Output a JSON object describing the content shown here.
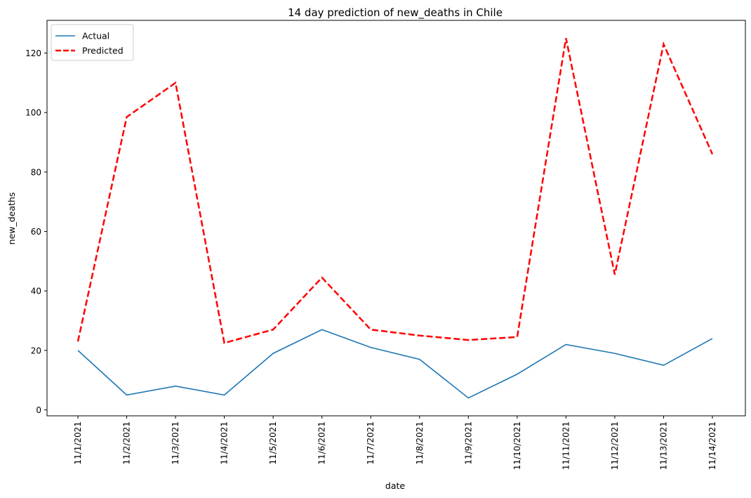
{
  "chart_data": {
    "type": "line",
    "title": "14 day prediction of new_deaths in Chile",
    "xlabel": "date",
    "ylabel": "new_deaths",
    "categories": [
      "11/1/2021",
      "11/2/2021",
      "11/3/2021",
      "11/4/2021",
      "11/5/2021",
      "11/6/2021",
      "11/7/2021",
      "11/8/2021",
      "11/9/2021",
      "11/10/2021",
      "11/11/2021",
      "11/12/2021",
      "11/13/2021",
      "11/14/2021"
    ],
    "ylim": [
      -2,
      131
    ],
    "yticks": [
      "0",
      "20",
      "40",
      "60",
      "80",
      "100",
      "120"
    ],
    "legend_position": "top-left",
    "grid": false,
    "series": [
      {
        "name": "Actual",
        "color": "#1f77b4",
        "style": "solid",
        "values": [
          20,
          5,
          8,
          5,
          19,
          27,
          21,
          17,
          4,
          12,
          22,
          19,
          15,
          24
        ]
      },
      {
        "name": "Predicted",
        "color": "#ff0000",
        "style": "dashed",
        "values": [
          23,
          98.5,
          110,
          22.5,
          27,
          44.5,
          27,
          25,
          23.5,
          24.5,
          125,
          45.5,
          123,
          86
        ]
      }
    ]
  }
}
